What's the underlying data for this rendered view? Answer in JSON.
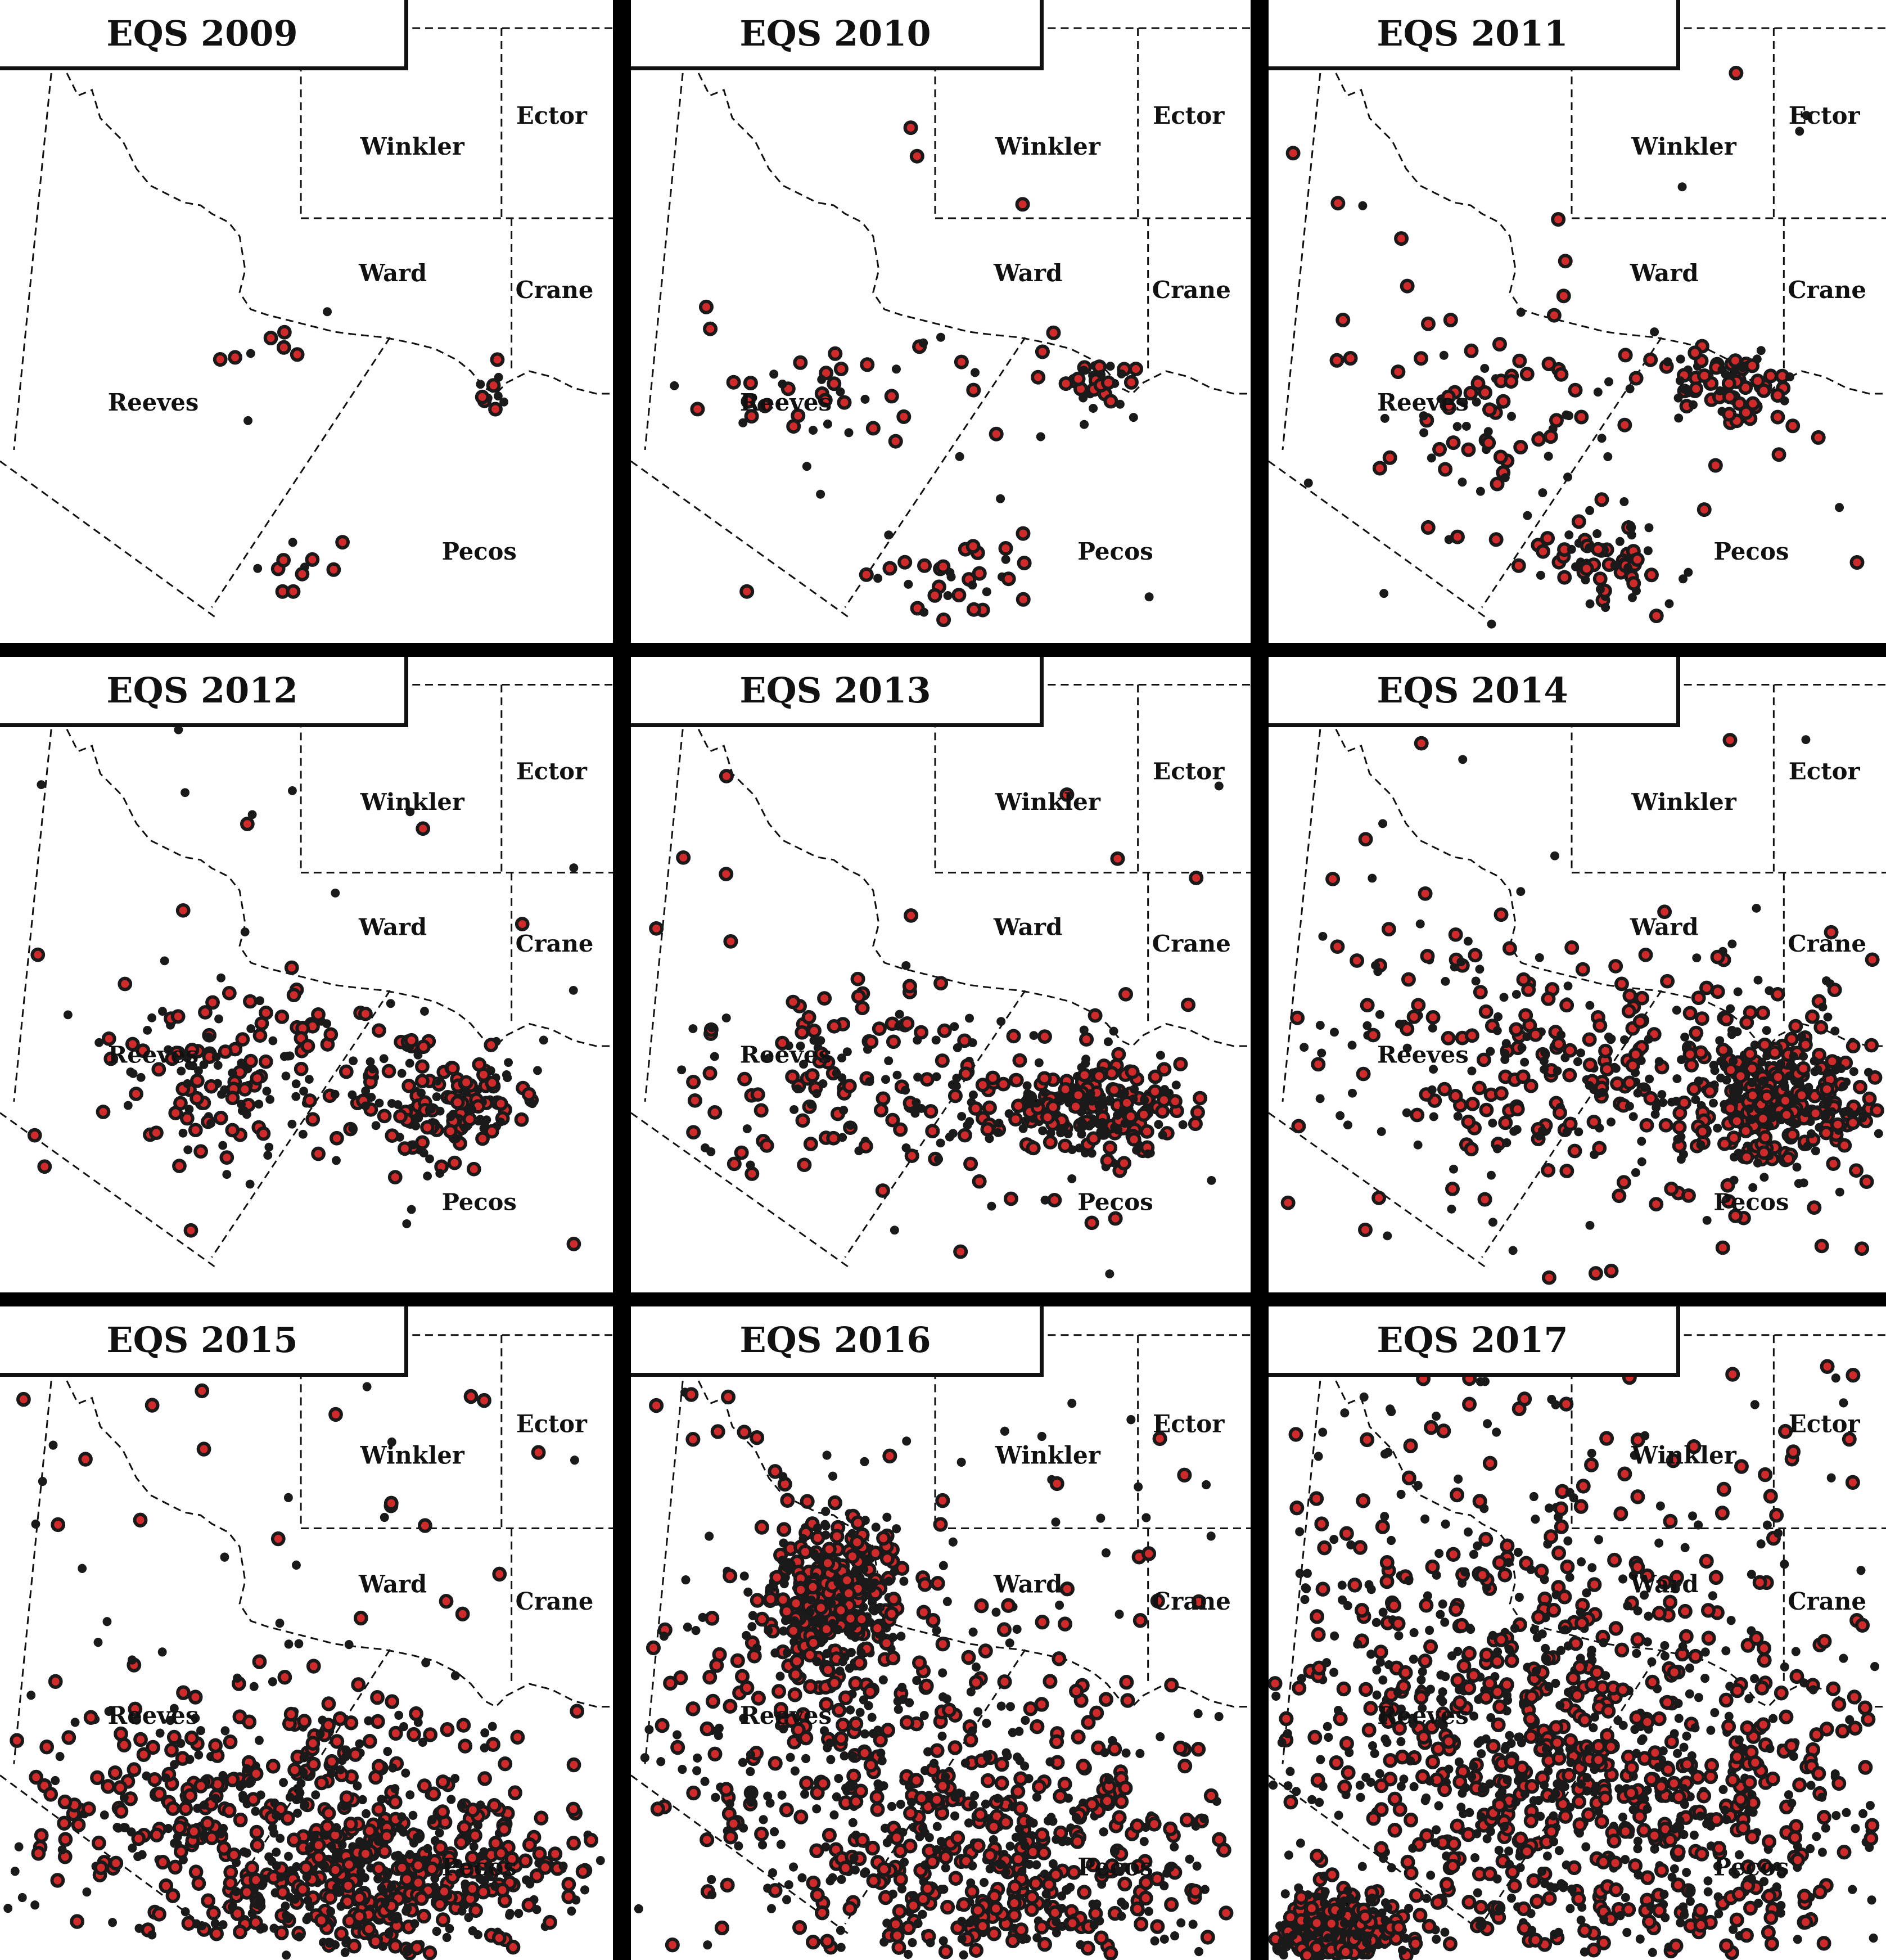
{
  "county_labels": [
    "Winkler",
    "Ector",
    "Ward",
    "Crane",
    "Reeves",
    "Pecos"
  ],
  "colors": {
    "background": "#ffffff",
    "frame": "#000000",
    "lines": "#111111",
    "event_ring": "#1a1a1a",
    "event_fill": "#d02a2a"
  },
  "panels": [
    {
      "title": "EQS 2009",
      "events": 30
    },
    {
      "title": "EQS 2010",
      "events": 120
    },
    {
      "title": "EQS 2011",
      "events": 260
    },
    {
      "title": "EQS 2012",
      "events": 330
    },
    {
      "title": "EQS 2013",
      "events": 420
    },
    {
      "title": "EQS 2014",
      "events": 700
    },
    {
      "title": "EQS 2015",
      "events": 900
    },
    {
      "title": "EQS 2016",
      "events": 1200
    },
    {
      "title": "EQS 2017",
      "events": 1800
    }
  ]
}
